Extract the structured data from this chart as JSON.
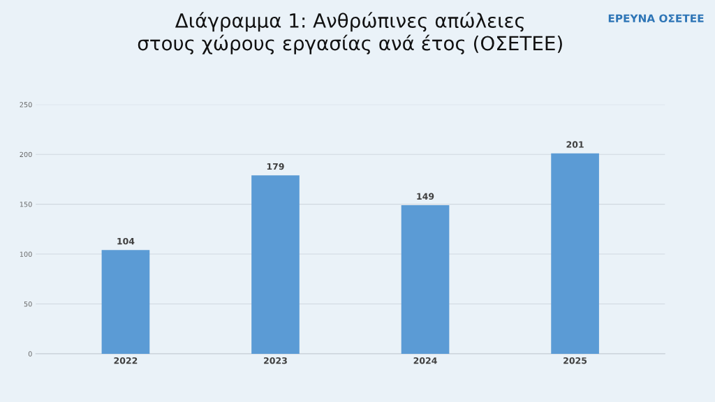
{
  "chart_data": {
    "type": "bar",
    "title": "Διάγραμμα 1: Ανθρώπινες απώλειες\nστους χώρους εργασίας ανά έτος (ΟΣΕΤΕΕ)",
    "annotations": [
      "ΕΡΕΥΝΑ ΟΣΕΤΕΕ"
    ],
    "categories": [
      "2022",
      "2023",
      "2024",
      "2025"
    ],
    "values": [
      104,
      179,
      149,
      201
    ],
    "color": "#5b9bd5",
    "ylim": [
      0,
      250
    ],
    "yticks": [
      0,
      50,
      100,
      150,
      200,
      250
    ],
    "grid": "y",
    "data_labels": true
  }
}
